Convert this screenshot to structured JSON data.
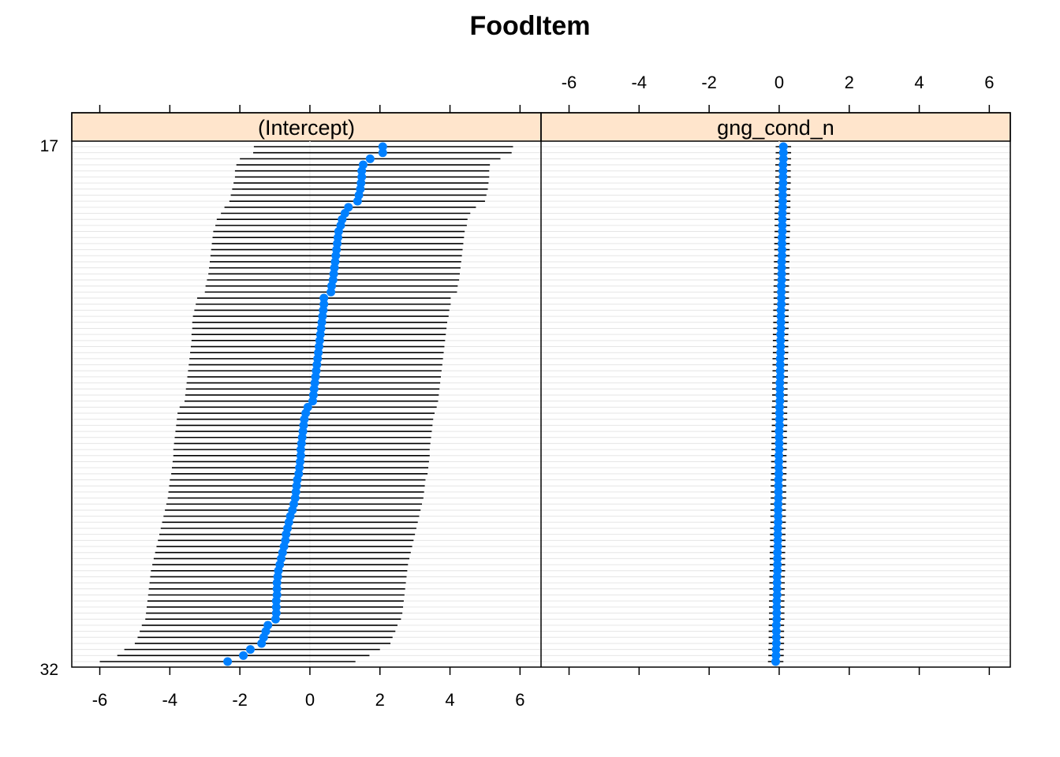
{
  "chart_data": {
    "type": "dotplot-errorbar",
    "title": "FoodItem",
    "xlim": [
      -6.8,
      6.6
    ],
    "x_ticks": [
      -6,
      -4,
      -2,
      0,
      2,
      4,
      6
    ],
    "x_tick_labels": [
      "-6",
      "-4",
      "-2",
      "0",
      "2",
      "4",
      "6"
    ],
    "top_row_label": "17",
    "bottom_row_label": "32",
    "panels": [
      {
        "name": "(Intercept)",
        "estimates": [
          2.08,
          2.08,
          1.72,
          1.52,
          1.48,
          1.48,
          1.46,
          1.44,
          1.4,
          1.36,
          1.1,
          1.0,
          0.92,
          0.88,
          0.82,
          0.8,
          0.78,
          0.76,
          0.74,
          0.72,
          0.7,
          0.68,
          0.66,
          0.62,
          0.6,
          0.4,
          0.4,
          0.38,
          0.36,
          0.34,
          0.32,
          0.3,
          0.28,
          0.26,
          0.24,
          0.22,
          0.2,
          0.18,
          0.16,
          0.14,
          0.12,
          0.1,
          0.08,
          -0.06,
          -0.12,
          -0.16,
          -0.18,
          -0.2,
          -0.22,
          -0.24,
          -0.26,
          -0.26,
          -0.28,
          -0.3,
          -0.32,
          -0.36,
          -0.38,
          -0.4,
          -0.42,
          -0.46,
          -0.5,
          -0.56,
          -0.6,
          -0.64,
          -0.68,
          -0.7,
          -0.74,
          -0.78,
          -0.82,
          -0.86,
          -0.9,
          -0.92,
          -0.94,
          -0.94,
          -0.94,
          -0.96,
          -0.96,
          -0.96,
          -0.98,
          -1.2,
          -1.26,
          -1.32,
          -1.38,
          -1.7,
          -1.9,
          -2.35
        ],
        "lower": [
          -1.6,
          -1.62,
          -2.0,
          -2.1,
          -2.14,
          -2.14,
          -2.18,
          -2.22,
          -2.26,
          -2.3,
          -2.44,
          -2.54,
          -2.66,
          -2.7,
          -2.76,
          -2.78,
          -2.8,
          -2.82,
          -2.84,
          -2.86,
          -2.88,
          -2.9,
          -2.94,
          -2.98,
          -3.0,
          -3.22,
          -3.26,
          -3.3,
          -3.34,
          -3.36,
          -3.36,
          -3.38,
          -3.38,
          -3.4,
          -3.42,
          -3.44,
          -3.46,
          -3.48,
          -3.5,
          -3.52,
          -3.54,
          -3.56,
          -3.58,
          -3.72,
          -3.78,
          -3.8,
          -3.82,
          -3.84,
          -3.86,
          -3.88,
          -3.9,
          -3.9,
          -3.92,
          -3.94,
          -3.96,
          -4.0,
          -4.02,
          -4.04,
          -4.06,
          -4.1,
          -4.14,
          -4.18,
          -4.22,
          -4.26,
          -4.3,
          -4.34,
          -4.38,
          -4.42,
          -4.46,
          -4.5,
          -4.54,
          -4.56,
          -4.58,
          -4.6,
          -4.62,
          -4.64,
          -4.66,
          -4.68,
          -4.7,
          -4.8,
          -4.86,
          -4.92,
          -5.0,
          -5.3,
          -5.5,
          -6.0
        ],
        "upper": [
          5.8,
          5.76,
          5.44,
          5.14,
          5.12,
          5.12,
          5.1,
          5.08,
          5.04,
          5.0,
          4.74,
          4.58,
          4.5,
          4.48,
          4.42,
          4.4,
          4.38,
          4.36,
          4.34,
          4.32,
          4.3,
          4.28,
          4.26,
          4.22,
          4.2,
          4.02,
          4.02,
          3.98,
          3.96,
          3.92,
          3.9,
          3.88,
          3.86,
          3.84,
          3.82,
          3.8,
          3.78,
          3.76,
          3.74,
          3.72,
          3.7,
          3.68,
          3.66,
          3.62,
          3.56,
          3.52,
          3.5,
          3.48,
          3.46,
          3.44,
          3.42,
          3.42,
          3.4,
          3.38,
          3.36,
          3.3,
          3.28,
          3.26,
          3.24,
          3.2,
          3.16,
          3.12,
          3.08,
          3.04,
          3.0,
          2.96,
          2.92,
          2.88,
          2.84,
          2.8,
          2.78,
          2.76,
          2.74,
          2.72,
          2.7,
          2.68,
          2.66,
          2.64,
          2.6,
          2.5,
          2.44,
          2.36,
          2.3,
          2.0,
          1.7,
          1.3
        ]
      },
      {
        "name": "gng_cond_n",
        "estimates": [
          0.12,
          0.12,
          0.12,
          0.11,
          0.11,
          0.11,
          0.11,
          0.1,
          0.1,
          0.1,
          0.1,
          0.09,
          0.09,
          0.09,
          0.09,
          0.08,
          0.08,
          0.08,
          0.08,
          0.07,
          0.07,
          0.07,
          0.07,
          0.06,
          0.06,
          0.06,
          0.06,
          0.05,
          0.05,
          0.05,
          0.05,
          0.04,
          0.04,
          0.04,
          0.04,
          0.03,
          0.03,
          0.03,
          0.03,
          0.02,
          0.02,
          0.02,
          0.02,
          0.01,
          0.01,
          0.01,
          0.01,
          0.0,
          0.0,
          0.0,
          0.0,
          -0.01,
          -0.01,
          -0.01,
          -0.01,
          -0.02,
          -0.02,
          -0.02,
          -0.02,
          -0.03,
          -0.03,
          -0.03,
          -0.03,
          -0.04,
          -0.04,
          -0.04,
          -0.04,
          -0.05,
          -0.05,
          -0.05,
          -0.05,
          -0.06,
          -0.06,
          -0.06,
          -0.06,
          -0.07,
          -0.07,
          -0.07,
          -0.07,
          -0.08,
          -0.08,
          -0.08,
          -0.08,
          -0.09,
          -0.09,
          -0.1
        ],
        "lower": [
          -0.1,
          -0.1,
          -0.1,
          -0.11,
          -0.11,
          -0.11,
          -0.11,
          -0.12,
          -0.12,
          -0.12,
          -0.12,
          -0.13,
          -0.13,
          -0.13,
          -0.13,
          -0.14,
          -0.14,
          -0.14,
          -0.14,
          -0.15,
          -0.15,
          -0.15,
          -0.15,
          -0.16,
          -0.16,
          -0.16,
          -0.16,
          -0.17,
          -0.17,
          -0.17,
          -0.17,
          -0.18,
          -0.18,
          -0.18,
          -0.18,
          -0.19,
          -0.19,
          -0.19,
          -0.19,
          -0.2,
          -0.2,
          -0.2,
          -0.2,
          -0.21,
          -0.21,
          -0.21,
          -0.21,
          -0.22,
          -0.22,
          -0.22,
          -0.22,
          -0.23,
          -0.23,
          -0.23,
          -0.23,
          -0.24,
          -0.24,
          -0.24,
          -0.24,
          -0.25,
          -0.25,
          -0.25,
          -0.25,
          -0.26,
          -0.26,
          -0.26,
          -0.26,
          -0.27,
          -0.27,
          -0.27,
          -0.27,
          -0.28,
          -0.28,
          -0.28,
          -0.28,
          -0.29,
          -0.29,
          -0.29,
          -0.29,
          -0.3,
          -0.3,
          -0.3,
          -0.3,
          -0.31,
          -0.31,
          -0.32
        ],
        "upper": [
          0.34,
          0.34,
          0.34,
          0.33,
          0.33,
          0.33,
          0.33,
          0.32,
          0.32,
          0.32,
          0.32,
          0.31,
          0.31,
          0.31,
          0.31,
          0.3,
          0.3,
          0.3,
          0.3,
          0.29,
          0.29,
          0.29,
          0.29,
          0.28,
          0.28,
          0.28,
          0.28,
          0.27,
          0.27,
          0.27,
          0.27,
          0.26,
          0.26,
          0.26,
          0.26,
          0.25,
          0.25,
          0.25,
          0.25,
          0.24,
          0.24,
          0.24,
          0.24,
          0.23,
          0.23,
          0.23,
          0.23,
          0.22,
          0.22,
          0.22,
          0.22,
          0.21,
          0.21,
          0.21,
          0.21,
          0.2,
          0.2,
          0.2,
          0.2,
          0.19,
          0.19,
          0.19,
          0.19,
          0.18,
          0.18,
          0.18,
          0.18,
          0.17,
          0.17,
          0.17,
          0.17,
          0.16,
          0.16,
          0.16,
          0.16,
          0.15,
          0.15,
          0.15,
          0.15,
          0.14,
          0.14,
          0.14,
          0.14,
          0.13,
          0.13,
          0.12
        ]
      }
    ],
    "colors": {
      "point": "#0080ff",
      "interval": "#000000",
      "strip_bg": "#ffe5cc",
      "grid": "#e6e6e6",
      "refline": "#f2f2f2"
    },
    "grid": true
  }
}
